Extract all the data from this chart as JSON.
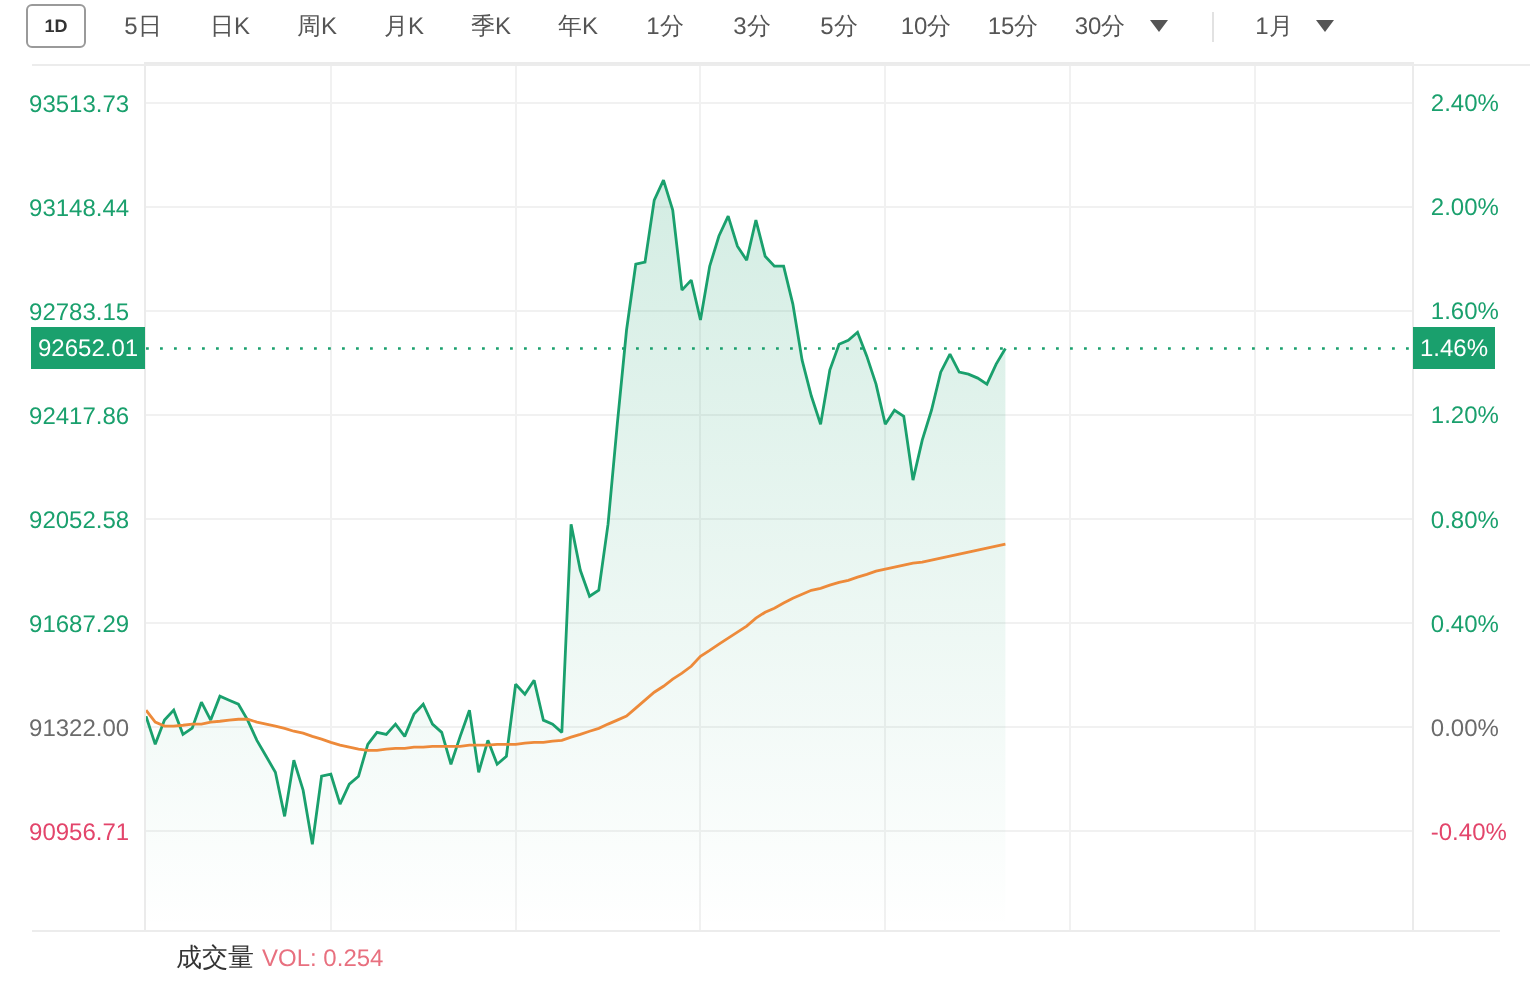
{
  "chart_data": {
    "type": "area",
    "categories": [
      null,
      null,
      null,
      null,
      null,
      null,
      null,
      null,
      null,
      null,
      null,
      null,
      null,
      null,
      null,
      null,
      null,
      null,
      null,
      null,
      null,
      null,
      null,
      null,
      null,
      null,
      null,
      null,
      null,
      null,
      null,
      null,
      null,
      null,
      null,
      null,
      null,
      null,
      null,
      null,
      null,
      null,
      null,
      null,
      null,
      null,
      null,
      null,
      null,
      null,
      null,
      null,
      null,
      null,
      null,
      null,
      null,
      null,
      null,
      null,
      null,
      null,
      null,
      null,
      null,
      null,
      null,
      null,
      null,
      null,
      null,
      null,
      null,
      null,
      null,
      null,
      null,
      null,
      null,
      null,
      null,
      null,
      null,
      null,
      null,
      null,
      null,
      null,
      null,
      null,
      null,
      null,
      null,
      null,
      null,
      null,
      null,
      null,
      null,
      null,
      null,
      null,
      null,
      null,
      null,
      null,
      null,
      null,
      null,
      null,
      null,
      null,
      null,
      null,
      null,
      null,
      null,
      null,
      null,
      null,
      null,
      null,
      null,
      null,
      null,
      null,
      null,
      null,
      null,
      null,
      null,
      null,
      null,
      null,
      null,
      null,
      null,
      null
    ],
    "series": [
      {
        "color": "#1aa06d",
        "values": [
          91361,
          91262,
          91347,
          91382,
          91297,
          91319,
          91410,
          91347,
          91431,
          91417,
          91403,
          91347,
          91276,
          91220,
          91164,
          91009,
          91206,
          91101,
          90911,
          91150,
          91157,
          91052,
          91122,
          91150,
          91262,
          91304,
          91297,
          91333,
          91290,
          91368,
          91403,
          91333,
          91304,
          91192,
          91290,
          91382,
          91164,
          91276,
          91192,
          91220,
          91473,
          91438,
          91487,
          91347,
          91333,
          91304,
          92035,
          91873,
          91782,
          91803,
          92035,
          92386,
          92716,
          92948,
          92955,
          93173,
          93243,
          93138,
          92857,
          92892,
          92752,
          92941,
          93047,
          93117,
          93011,
          92962,
          93103,
          92976,
          92941,
          92941,
          92808,
          92611,
          92485,
          92386,
          92576,
          92667,
          92681,
          92709,
          92625,
          92527,
          92386,
          92435,
          92414,
          92190,
          92330,
          92435,
          92569,
          92632,
          92569,
          92562,
          92548,
          92527,
          92597,
          92652,
          null,
          null,
          null,
          null,
          null,
          null,
          null,
          null,
          null,
          null,
          null,
          null,
          null,
          null,
          null,
          null,
          null,
          null,
          null,
          null,
          null,
          null,
          null,
          null,
          null,
          null,
          null,
          null,
          null,
          null,
          null,
          null,
          null,
          null,
          null,
          null,
          null,
          null,
          null,
          null,
          null,
          null,
          null,
          null
        ]
      },
      {
        "type": "line",
        "color": "#ed8a3a",
        "values": [
          91382,
          91340,
          91326,
          91326,
          91329,
          91333,
          91333,
          91340,
          91343,
          91347,
          91350,
          91350,
          91340,
          91333,
          91326,
          91318,
          91308,
          91301,
          91290,
          91280,
          91269,
          91259,
          91252,
          91245,
          91241,
          91241,
          91245,
          91248,
          91248,
          91252,
          91252,
          91255,
          91255,
          91255,
          91255,
          91259,
          91259,
          91259,
          91262,
          91262,
          91262,
          91266,
          91269,
          91269,
          91273,
          91276,
          91287,
          91297,
          91308,
          91318,
          91333,
          91347,
          91361,
          91389,
          91417,
          91445,
          91466,
          91491,
          91512,
          91536,
          91571,
          91592,
          91614,
          91635,
          91656,
          91677,
          91705,
          91726,
          91740,
          91758,
          91775,
          91789,
          91803,
          91810,
          91821,
          91831,
          91838,
          91849,
          91859,
          91870,
          91877,
          91884,
          91891,
          91898,
          91902,
          91909,
          91916,
          91923,
          91930,
          91937,
          91944,
          91951,
          91958,
          91965,
          null,
          null,
          null,
          null,
          null,
          null,
          null,
          null,
          null,
          null,
          null,
          null,
          null,
          null,
          null,
          null,
          null,
          null,
          null,
          null,
          null,
          null,
          null,
          null,
          null,
          null,
          null,
          null,
          null,
          null,
          null,
          null,
          null,
          null,
          null,
          null,
          null,
          null,
          null,
          null,
          null,
          null,
          null,
          null
        ]
      }
    ],
    "ylim": [
      90610,
      93651
    ],
    "yticks": [
      90956.71,
      {
        "value": 91322,
        "label": "91322.00"
      },
      91687.29,
      92052.58,
      92417.86,
      92783.15,
      93148.44,
      93513.73
    ],
    "y2lim": [
      -0.78,
      2.55
    ],
    "y2ticks": [
      {
        "value": -0.4,
        "label": "-0.40%"
      },
      {
        "value": 0,
        "label": "0.00%"
      },
      {
        "value": 0.4,
        "label": "0.40%"
      },
      {
        "value": 0.8,
        "label": "0.80%"
      },
      {
        "value": 1.2,
        "label": "1.20%"
      },
      {
        "value": 1.6,
        "label": "1.60%"
      },
      {
        "value": 2.0,
        "label": "2.00%"
      },
      {
        "value": 2.4,
        "label": "2.40%"
      }
    ],
    "ref_lines": [
      {
        "axis": "y",
        "value": 92652.01,
        "label": "92652.01",
        "color": "#1aa06d",
        "line_style": "dotted"
      }
    ],
    "grid": true,
    "tick_labels": "y",
    "annotations": [
      "1D",
      "5日",
      "日K",
      "周K",
      "月K",
      "季K",
      "年K",
      "1分",
      "3分",
      "5分",
      "10分",
      "15分",
      "30分",
      "1月",
      {
        "text": "1.46%",
        "y": 92652.01
      },
      "成交量",
      "VOL: 0.254"
    ]
  }
}
